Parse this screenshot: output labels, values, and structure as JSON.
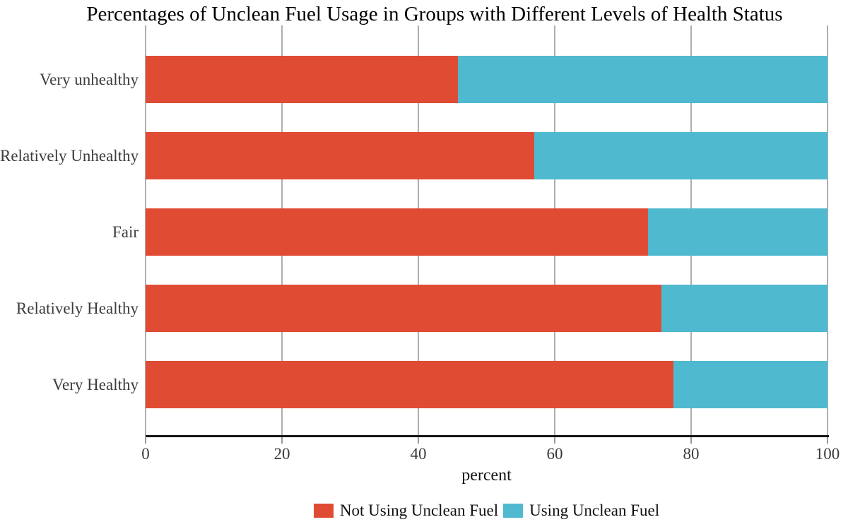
{
  "title": "Percentages of Unclean Fuel Usage in Groups with Different Levels of Health Status",
  "chart_data": {
    "type": "bar",
    "orientation": "horizontal",
    "stacked": true,
    "title": "Percentages of Unclean Fuel Usage in Groups with Different Levels of Health Status",
    "categories": [
      "Very unhealthy",
      "Relatively Unhealthy",
      "Fair",
      "Relatively Healthy",
      "Very Healthy"
    ],
    "series": [
      {
        "name": "Not Using Unclean Fuel",
        "color": "#e04b34",
        "values": [
          45.8,
          57.0,
          73.7,
          75.6,
          77.4
        ]
      },
      {
        "name": "Using Unclean Fuel",
        "color": "#4fb9d0",
        "values": [
          54.2,
          43.0,
          26.3,
          24.4,
          22.6
        ]
      }
    ],
    "xlabel": "percent",
    "xlim": [
      0,
      100
    ],
    "xticks": [
      0,
      20,
      40,
      60,
      80,
      100
    ],
    "xtick_labels": [
      "0",
      "20",
      "40",
      "60",
      "80",
      "100"
    ],
    "grid": true,
    "legend_position": "bottom",
    "colors": {
      "axis_line": "#141414",
      "gridline": "#aeaeae",
      "tick": "#9a9a9a",
      "category_label": "#3c3c3c",
      "tick_label": "#3a3a3a",
      "title": "#000000"
    }
  }
}
